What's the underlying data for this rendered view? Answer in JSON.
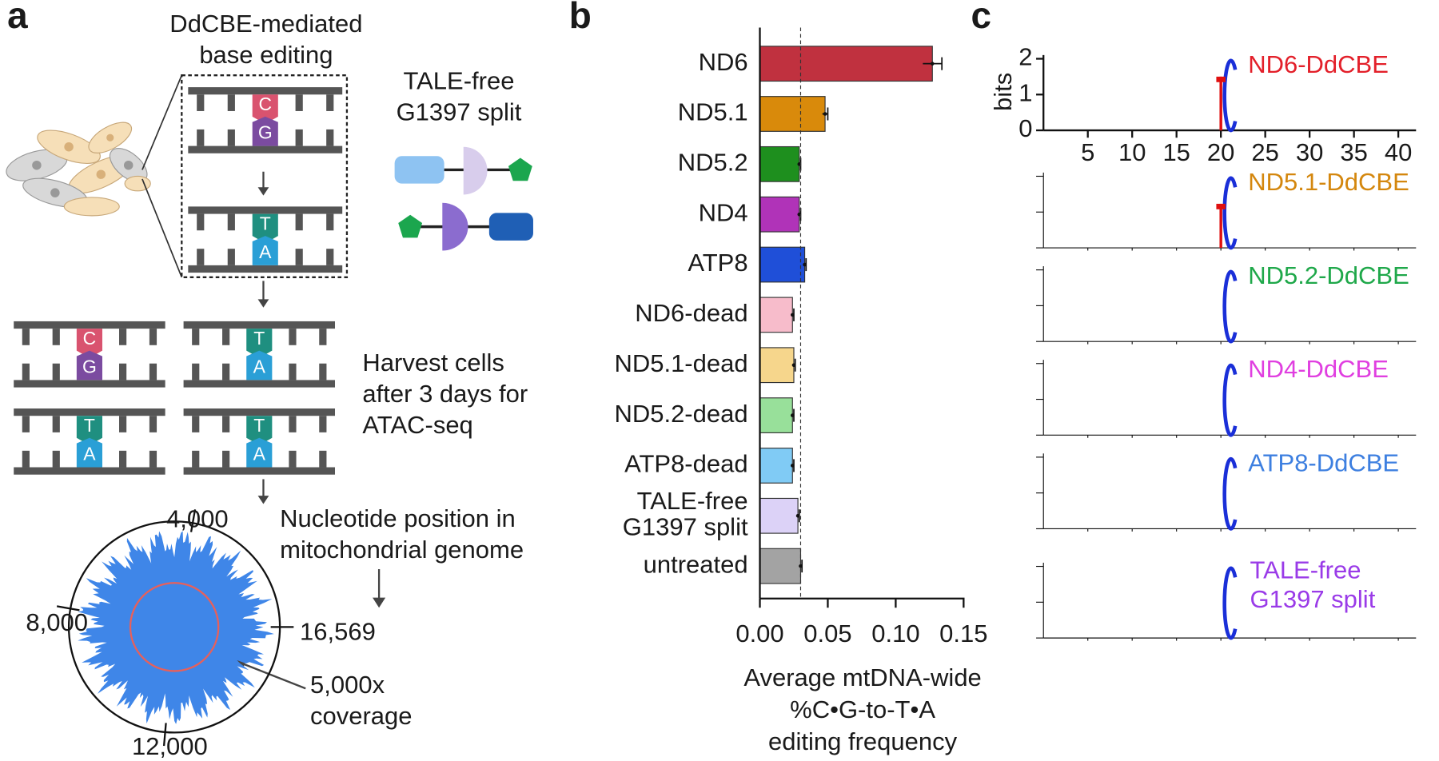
{
  "panel_labels": [
    "a",
    "b",
    "c"
  ],
  "panel_a": {
    "title": "DdCBE-mediated\nbase editing",
    "construct": "TALE-free\nG1397 split",
    "harvest": "Harvest cells\nafter 3 days for\nATAC-seq",
    "position": "Nucleotide position in\nmitochondrial genome",
    "coverage": "5,000x\ncoverage",
    "genome_ticks": [
      "4,000",
      "8,000",
      "12,000",
      "16,569"
    ],
    "bases": [
      [
        "C",
        "G"
      ],
      [
        "T",
        "A"
      ],
      [
        "C",
        "G"
      ],
      [
        "T",
        "A"
      ],
      [
        "T",
        "A"
      ],
      [
        "T",
        "A"
      ]
    ]
  },
  "chart_data": [
    {
      "type": "barh",
      "xlabel": "Average mtDNA-wide\n%C•G-to-T•A\nediting frequency",
      "categories": [
        "ND6",
        "ND5.1",
        "ND5.2",
        "ND4",
        "ATP8",
        "ND6-dead",
        "ND5.1-dead",
        "ND5.2-dead",
        "ATP8-dead",
        "TALE-free\nG1397 split",
        "untreated"
      ],
      "values": [
        0.127,
        0.048,
        0.029,
        0.029,
        0.033,
        0.024,
        0.025,
        0.024,
        0.024,
        0.028,
        0.03
      ],
      "errors": [
        0.007,
        0.002,
        0.001,
        0.001,
        0.001,
        0.001,
        0.001,
        0.001,
        0.001,
        0.001,
        0.001
      ],
      "colors": [
        "#c0313f",
        "#d98a0b",
        "#1e8f1e",
        "#b033b8",
        "#1f4fd8",
        "#f7bccb",
        "#f6d68c",
        "#98e09a",
        "#80cbf5",
        "#dcd2f7",
        "#a3a3a3"
      ],
      "xlim": [
        0,
        0.15
      ],
      "xticks": [
        {
          "value": 0,
          "label": "0.00"
        },
        {
          "value": 0.05,
          "label": "0.05"
        },
        {
          "value": 0.1,
          "label": "0.10"
        },
        {
          "value": 0.15,
          "label": "0.15"
        }
      ]
    },
    {
      "type": "sequence-logo",
      "ylabel": "bits",
      "ylim": [
        0,
        2
      ],
      "yticks": [
        0,
        1,
        2
      ],
      "xlim": [
        0,
        42
      ],
      "xticks": [
        5,
        10,
        15,
        20,
        25,
        30,
        35,
        40
      ],
      "series": [
        {
          "name": "ND6-DdCBE",
          "color": "#e3202a"
        },
        {
          "name": "ND5.1-DdCBE",
          "color": "#d4870e"
        },
        {
          "name": "ND5.2-DdCBE",
          "color": "#1fa84a"
        },
        {
          "name": "ND4-DdCBE",
          "color": "#e03fe0"
        },
        {
          "name": "ATP8-DdCBE",
          "color": "#3d7fe0"
        },
        {
          "name": "TALE-free\nG1397 split",
          "color": "#9a3be8"
        }
      ]
    }
  ]
}
